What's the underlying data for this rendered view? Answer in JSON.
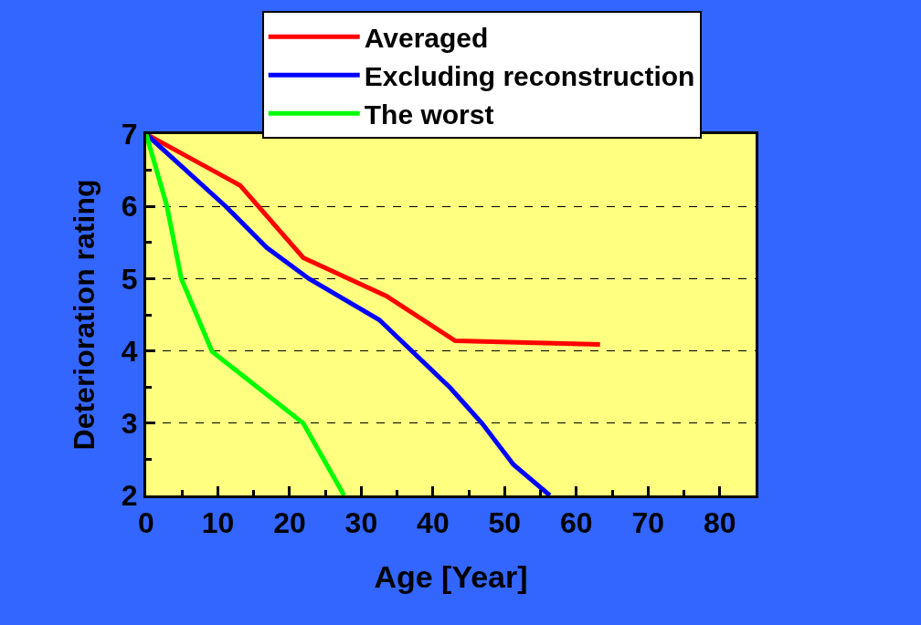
{
  "chart_data": {
    "type": "line",
    "xlabel": "Age [Year]",
    "ylabel": "Deterioration rating",
    "xlim": [
      0,
      85
    ],
    "xticks": [
      0,
      10,
      20,
      30,
      40,
      50,
      60,
      70,
      80
    ],
    "ylim": [
      2,
      7
    ],
    "yticks": [
      2,
      3,
      4,
      5,
      6,
      7
    ],
    "grid": "y",
    "legend": "top right",
    "line_style": "solid",
    "marker": "none",
    "series": [
      {
        "name": "Averaged",
        "color": "#ff0000",
        "x": [
          0,
          13.1,
          21.9,
          33.5,
          43.1,
          63.3
        ],
        "values": [
          7,
          6.29,
          5.29,
          4.76,
          4.14,
          4.09
        ]
      },
      {
        "name": "Excluding reconstruction",
        "color": "#0000ff",
        "x": [
          0,
          11.1,
          16.8,
          22.7,
          32.5,
          42.4,
          46.9,
          51.2,
          56.3
        ],
        "values": [
          7,
          6.0,
          5.43,
          5.0,
          4.43,
          3.49,
          2.99,
          2.43,
          2.0
        ]
      },
      {
        "name": "The worst",
        "color": "#00ff00",
        "x": [
          0,
          2.9,
          4.9,
          9.2,
          21.9,
          27.6
        ],
        "values": [
          7,
          6.0,
          5.0,
          3.99,
          3.0,
          2.0
        ]
      }
    ]
  }
}
